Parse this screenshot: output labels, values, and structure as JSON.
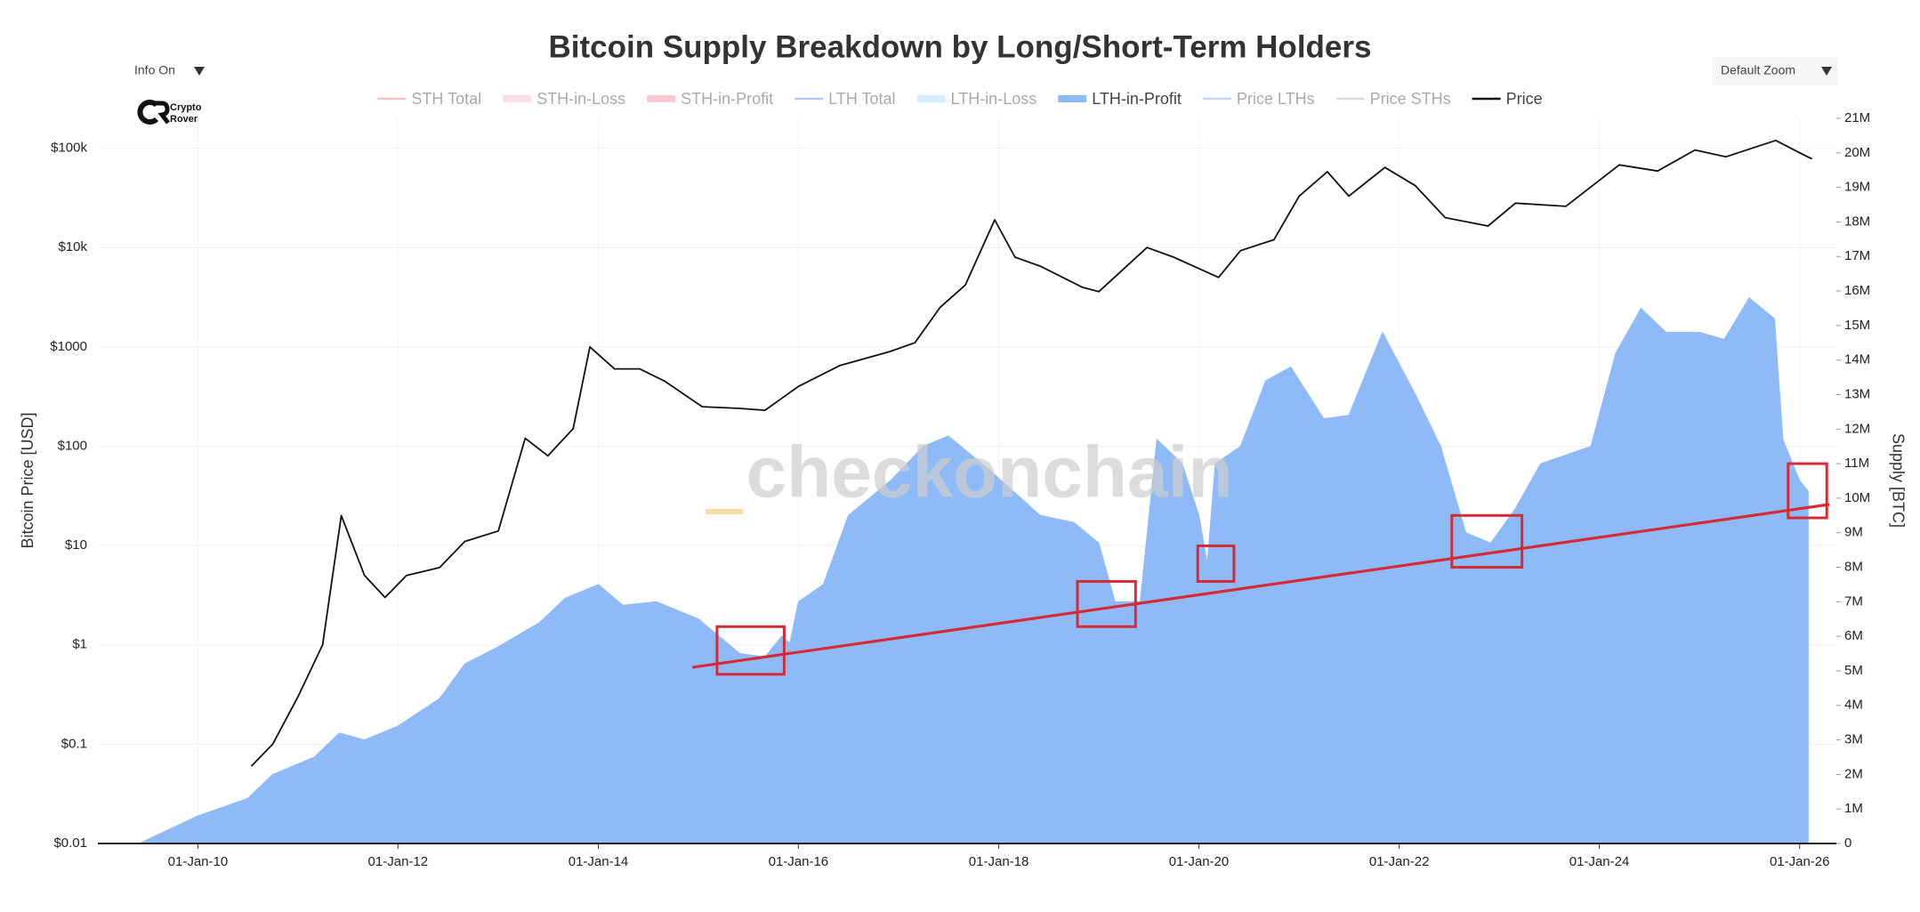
{
  "chart_data": {
    "type": "line",
    "title": "Bitcoin Supply Breakdown by Long/Short-Term Holders",
    "controls": {
      "info": "Info On",
      "zoom": "Default Zoom"
    },
    "logo": {
      "line1": "Crypto",
      "line2": "Rover"
    },
    "watermark": "checkonchain",
    "y_label": "Bitcoin Price [USD]",
    "y2_label": "Supply [BTC]",
    "xlim": [
      "2009-01-01",
      "2026-05-15"
    ],
    "xticks": [
      {
        "value": "2010-01-01",
        "label": "01-Jan-10"
      },
      {
        "value": "2012-01-01",
        "label": "01-Jan-12"
      },
      {
        "value": "2014-01-01",
        "label": "01-Jan-14"
      },
      {
        "value": "2016-01-01",
        "label": "01-Jan-16"
      },
      {
        "value": "2018-01-01",
        "label": "01-Jan-18"
      },
      {
        "value": "2020-01-01",
        "label": "01-Jan-20"
      },
      {
        "value": "2022-01-01",
        "label": "01-Jan-22"
      },
      {
        "value": "2024-01-01",
        "label": "01-Jan-24"
      },
      {
        "value": "2026-01-01",
        "label": "01-Jan-26"
      }
    ],
    "ylog": true,
    "ylim": [
      0.01,
      200000
    ],
    "yticks": [
      {
        "value": 0.01,
        "label": "$0.01"
      },
      {
        "value": 0.1,
        "label": "$0.1"
      },
      {
        "value": 1,
        "label": "$1"
      },
      {
        "value": 10,
        "label": "$10"
      },
      {
        "value": 100,
        "label": "$100"
      },
      {
        "value": 1000,
        "label": "$1000"
      },
      {
        "value": 10000,
        "label": "$10k"
      },
      {
        "value": 100000,
        "label": "$100k"
      }
    ],
    "y2lim": [
      0,
      21000000
    ],
    "y2ticks": [
      0,
      {
        "value": 1000000,
        "label": "1M"
      },
      {
        "value": 2000000,
        "label": "2M"
      },
      {
        "value": 3000000,
        "label": "3M"
      },
      {
        "value": 4000000,
        "label": "4M"
      },
      {
        "value": 5000000,
        "label": "5M"
      },
      {
        "value": 6000000,
        "label": "6M"
      },
      {
        "value": 7000000,
        "label": "7M"
      },
      {
        "value": 8000000,
        "label": "8M"
      },
      {
        "value": 9000000,
        "label": "9M"
      },
      {
        "value": 10000000,
        "label": "10M"
      },
      {
        "value": 11000000,
        "label": "11M"
      },
      {
        "value": 12000000,
        "label": "12M"
      },
      {
        "value": 13000000,
        "label": "13M"
      },
      {
        "value": 14000000,
        "label": "14M"
      },
      {
        "value": 15000000,
        "label": "15M"
      },
      {
        "value": 16000000,
        "label": "16M"
      },
      {
        "value": 17000000,
        "label": "17M"
      },
      {
        "value": 18000000,
        "label": "18M"
      },
      {
        "value": 19000000,
        "label": "19M"
      },
      {
        "value": 20000000,
        "label": "20M"
      },
      {
        "value": 21000000,
        "label": "21M"
      }
    ],
    "grid": true,
    "legend": "top",
    "series": [
      {
        "name": "STH Total",
        "color": "#e57383",
        "style": "line",
        "visible": false
      },
      {
        "name": "STH-in-Loss",
        "color": "#f9b8c6",
        "style": "area",
        "visible": false
      },
      {
        "name": "STH-in-Profit",
        "color": "#f28ca0",
        "style": "area",
        "visible": false
      },
      {
        "name": "LTH Total",
        "color": "#4a90e2",
        "style": "line",
        "visible": false
      },
      {
        "name": "LTH-in-Loss",
        "color": "#a9d3f7",
        "style": "area",
        "visible": false
      },
      {
        "name": "LTH-in-Profit",
        "color": "#8ebbf8",
        "style": "area",
        "visible": true,
        "axis": "y2",
        "x": [
          "2009-06-01",
          "2010-01-01",
          "2010-07-01",
          "2010-10-01",
          "2011-03-01",
          "2011-06-01",
          "2011-09-01",
          "2012-01-01",
          "2012-06-01",
          "2012-09-01",
          "2013-01-01",
          "2013-06-01",
          "2013-09-01",
          "2014-01-01",
          "2014-04-01",
          "2014-08-01",
          "2015-01-01",
          "2015-06-01",
          "2015-09-01",
          "2015-11-01",
          "2015-12-01",
          "2016-01-01",
          "2016-04-01",
          "2016-07-01",
          "2016-12-01",
          "2017-04-01",
          "2017-07-01",
          "2017-12-01",
          "2018-06-01",
          "2018-10-01",
          "2019-01-01",
          "2019-03-01",
          "2019-06-01",
          "2019-08-01",
          "2019-11-01",
          "2020-01-01",
          "2020-02-01",
          "2020-03-01",
          "2020-06-01",
          "2020-09-01",
          "2020-12-01",
          "2021-04-01",
          "2021-07-01",
          "2021-11-01",
          "2022-03-01",
          "2022-06-01",
          "2022-09-01",
          "2022-12-01",
          "2023-03-01",
          "2023-06-01",
          "2023-12-01",
          "2024-03-01",
          "2024-06-01",
          "2024-09-01",
          "2025-01-01",
          "2025-04-01",
          "2025-07-01",
          "2025-10-01",
          "2025-11-01",
          "2026-01-01",
          "2026-02-01"
        ],
        "values": [
          0,
          800000,
          1300000,
          2000000,
          2500000,
          3200000,
          3000000,
          3400000,
          4200000,
          5200000,
          5700000,
          6400000,
          7100000,
          7500000,
          6900000,
          7000000,
          6500000,
          5500000,
          5400000,
          6000000,
          5800000,
          7000000,
          7500000,
          9500000,
          10500000,
          11500000,
          11800000,
          10800000,
          9500000,
          9300000,
          8700000,
          7000000,
          7000000,
          11700000,
          11000000,
          9500000,
          8100000,
          11000000,
          11500000,
          13400000,
          13800000,
          12300000,
          12400000,
          14800000,
          13000000,
          11500000,
          9000000,
          8700000,
          9700000,
          11000000,
          11500000,
          14200000,
          15500000,
          14800000,
          14800000,
          14600000,
          15800000,
          15200000,
          11700000,
          10500000,
          10200000
        ]
      },
      {
        "name": "Price LTHs",
        "color": "#8aa6dd",
        "style": "line",
        "visible": false
      },
      {
        "name": "Price STHs",
        "color": "#b0b0b0",
        "style": "line",
        "visible": false
      },
      {
        "name": "Price",
        "color": "#111111",
        "style": "line",
        "visible": true,
        "x": [
          "2010-07-15",
          "2010-10-01",
          "2011-01-01",
          "2011-04-01",
          "2011-06-08",
          "2011-09-01",
          "2011-11-15",
          "2012-02-01",
          "2012-06-01",
          "2012-09-01",
          "2013-01-01",
          "2013-04-09",
          "2013-07-01",
          "2013-10-01",
          "2013-12-01",
          "2014-03-01",
          "2014-06-01",
          "2014-09-01",
          "2015-01-15",
          "2015-06-01",
          "2015-09-01",
          "2016-01-01",
          "2016-06-01",
          "2016-12-01",
          "2017-03-01",
          "2017-06-01",
          "2017-09-01",
          "2017-12-17",
          "2018-03-01",
          "2018-06-01",
          "2018-11-01",
          "2019-01-01",
          "2019-06-26",
          "2019-10-01",
          "2020-03-13",
          "2020-06-01",
          "2020-10-01",
          "2021-01-01",
          "2021-04-14",
          "2021-07-01",
          "2021-11-10",
          "2022-03-01",
          "2022-06-18",
          "2022-11-21",
          "2023-03-01",
          "2023-09-01",
          "2024-03-14",
          "2024-08-01",
          "2024-12-15",
          "2025-04-07",
          "2025-10-06",
          "2026-01-01",
          "2026-02-15"
        ],
        "values": [
          0.06,
          0.1,
          0.3,
          1,
          20,
          5,
          3,
          5,
          6,
          11,
          14,
          120,
          80,
          150,
          1000,
          600,
          600,
          450,
          250,
          240,
          230,
          400,
          650,
          900,
          1100,
          2500,
          4200,
          19000,
          8000,
          6500,
          4000,
          3600,
          10000,
          8000,
          5000,
          9300,
          12000,
          33000,
          58000,
          33000,
          64000,
          42000,
          20000,
          16500,
          28000,
          26000,
          68000,
          59000,
          96000,
          82000,
          120000,
          90000,
          78000
        ]
      }
    ],
    "annotations": {
      "trend_line": {
        "color": "#d62b36",
        "x": [
          "2014-12-10",
          "2026-04-20"
        ],
        "y": [
          5100000,
          9820000
        ]
      },
      "boxes": [
        {
          "x0": "2015-03-10",
          "x1": "2015-11-10",
          "y0": 4900000,
          "y1": 6280000
        },
        {
          "x0": "2018-10-15",
          "x1": "2019-05-15",
          "y0": 6280000,
          "y1": 7590000
        },
        {
          "x0": "2019-12-28",
          "x1": "2020-05-08",
          "y0": 7590000,
          "y1": 8620000
        },
        {
          "x0": "2022-07-12",
          "x1": "2023-03-25",
          "y0": 8000000,
          "y1": 9500000
        },
        {
          "x0": "2025-11-20",
          "x1": "2026-04-10",
          "y0": 9430000,
          "y1": 11000000
        }
      ]
    }
  }
}
